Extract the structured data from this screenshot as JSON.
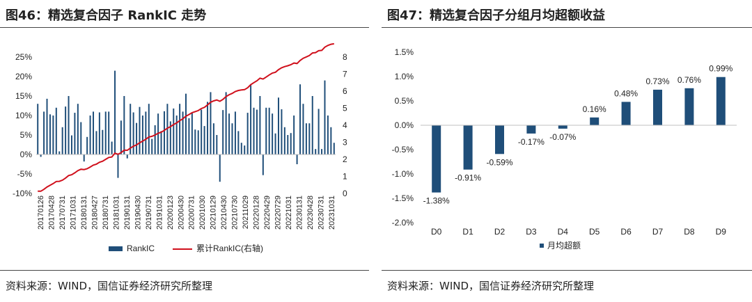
{
  "left": {
    "title": "图46：精选复合因子 RankIC 走势",
    "source": "资料来源：WIND，国信证券经济研究所整理"
  },
  "right": {
    "title": "图47：精选复合因子分组月均超额收益",
    "source": "资料来源：WIND，国信证券经济研究所整理"
  },
  "colors": {
    "bar": "#1f4e79",
    "line": "#d0101c",
    "axis": "#bfbfbf"
  },
  "chart_data": [
    {
      "type": "bar+line",
      "title": "精选复合因子 RankIC 走势",
      "ylim_left": [
        -10,
        25
      ],
      "yticks_left": [
        "-10%",
        "-5%",
        "0%",
        "5%",
        "10%",
        "15%",
        "20%",
        "25%"
      ],
      "ylim_right": [
        0,
        8
      ],
      "yticks_right": [
        "0",
        "1",
        "2",
        "3",
        "4",
        "5",
        "6",
        "7",
        "8"
      ],
      "xtick_labels": [
        "20170126",
        "20170428",
        "20170731",
        "20171031",
        "20180131",
        "20180427",
        "20180731",
        "20181031",
        "20190131",
        "20190430",
        "20190731",
        "20191031",
        "20200123",
        "20200430",
        "20200731",
        "20201030",
        "20210129",
        "20210430",
        "20210730",
        "20211029",
        "20220128",
        "20220429",
        "20220729",
        "20221031",
        "20230131",
        "20230428",
        "20230731",
        "20231031"
      ],
      "legend": [
        "RankIC",
        "累计RankIC(右轴)"
      ],
      "series": [
        {
          "name": "RankIC",
          "kind": "bar",
          "unit": "%",
          "values": [
            13,
            -0.6,
            11,
            14.3,
            10.3,
            10,
            12,
            0.8,
            7,
            12.3,
            15,
            4.9,
            10.7,
            13,
            8.3,
            -1.8,
            4.5,
            10,
            11,
            6,
            10.8,
            6.3,
            11,
            11,
            3.3,
            21.5,
            -6,
            8.7,
            15,
            -1,
            13,
            10.8,
            8.1,
            12.2,
            10,
            11,
            13,
            4,
            7.5,
            10.5,
            6,
            11.1,
            13,
            8.5,
            11.8,
            10,
            13,
            11,
            15.6,
            9.3,
            10.8,
            6.4,
            6.2,
            11.5,
            7.3,
            13.5,
            16,
            8,
            5,
            -7,
            11.4,
            16,
            10.5,
            8,
            11,
            6,
            3,
            2.3,
            10.7,
            18,
            12,
            11.5,
            15,
            -5.3,
            12,
            12,
            10.5,
            5.4,
            14.6,
            11.6,
            7,
            5,
            5.5,
            10,
            -2.5,
            18,
            13,
            8,
            8,
            15,
            1.4,
            11.7,
            1.4,
            19,
            10,
            7,
            3
          ]
        },
        {
          "name": "累计RankIC(右轴)",
          "kind": "line",
          "unit": "",
          "values": [
            0.13,
            0.13,
            0.24,
            0.38,
            0.48,
            0.58,
            0.7,
            0.71,
            0.78,
            0.9,
            1.05,
            1.1,
            1.21,
            1.34,
            1.42,
            1.4,
            1.45,
            1.55,
            1.66,
            1.72,
            1.83,
            1.89,
            2.0,
            2.11,
            2.14,
            2.36,
            2.3,
            2.39,
            2.54,
            2.53,
            2.66,
            2.77,
            2.85,
            2.97,
            3.07,
            3.18,
            3.31,
            3.35,
            3.43,
            3.53,
            3.59,
            3.7,
            3.83,
            3.92,
            4.04,
            4.14,
            4.27,
            4.38,
            4.53,
            4.63,
            4.74,
            4.8,
            4.86,
            4.98,
            5.05,
            5.19,
            5.35,
            5.43,
            5.48,
            5.41,
            5.52,
            5.68,
            5.79,
            5.87,
            5.98,
            6.04,
            6.07,
            6.09,
            6.2,
            6.38,
            6.5,
            6.61,
            6.76,
            6.71,
            6.83,
            6.95,
            7.06,
            7.11,
            7.26,
            7.37,
            7.44,
            7.49,
            7.55,
            7.65,
            7.62,
            7.8,
            7.93,
            8.01,
            8.09,
            8.24,
            8.26,
            8.37,
            8.39,
            8.58,
            8.68,
            8.75,
            8.78
          ]
        }
      ]
    },
    {
      "type": "bar",
      "title": "精选复合因子分组月均超额收益",
      "categories": [
        "D0",
        "D1",
        "D2",
        "D3",
        "D4",
        "D5",
        "D6",
        "D7",
        "D8",
        "D9"
      ],
      "values": [
        -1.38,
        -0.91,
        -0.59,
        -0.17,
        -0.07,
        0.16,
        0.48,
        0.73,
        0.76,
        0.99
      ],
      "value_labels": [
        "-1.38%",
        "-0.91%",
        "-0.59%",
        "-0.17%",
        "-0.07%",
        "0.16%",
        "0.48%",
        "0.73%",
        "0.76%",
        "0.99%"
      ],
      "ylim": [
        -2.0,
        1.5
      ],
      "yticks": [
        "-2.0%",
        "-1.5%",
        "-1.0%",
        "-0.5%",
        "0.0%",
        "0.5%",
        "1.0%",
        "1.5%"
      ],
      "legend": [
        "月均超额"
      ]
    }
  ]
}
